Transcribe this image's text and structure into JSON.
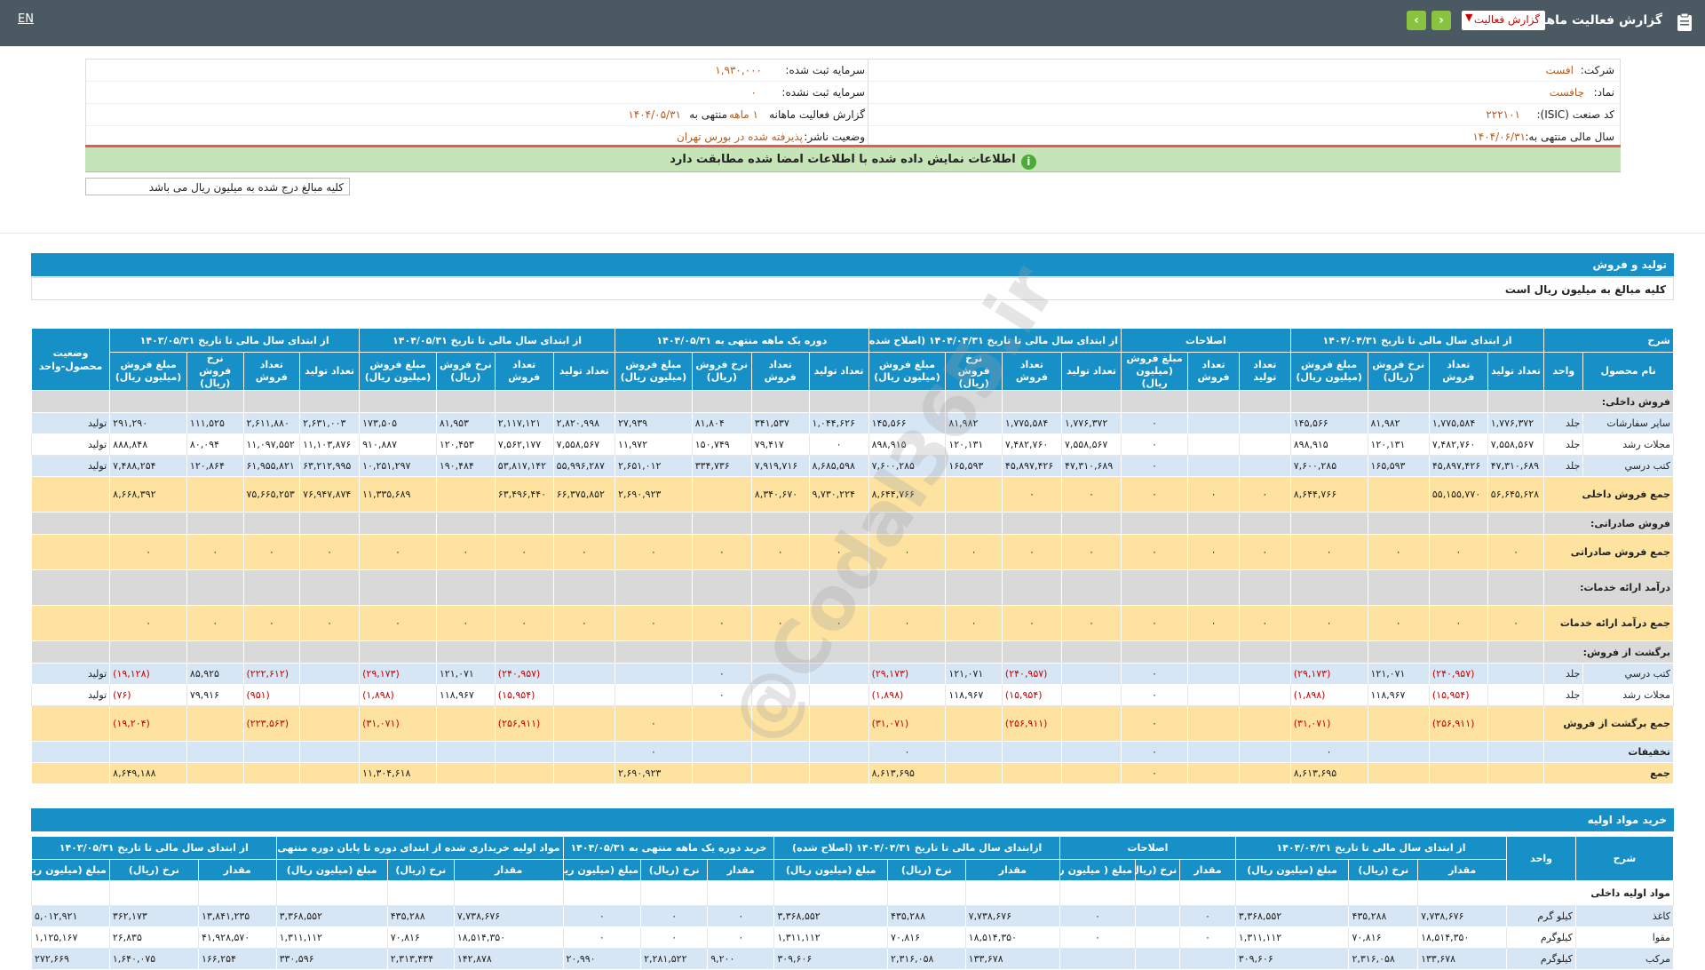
{
  "header": {
    "lang_toggle": "EN",
    "title": "گزارش فعالیت ماهانه",
    "select_value": "گزارش فعالیت",
    "prev_arrow": "‹",
    "next_arrow": "›"
  },
  "company": {
    "company_label": "شرکت:",
    "company_value": "افست",
    "symbol_label": "نماد:",
    "symbol_value": "چافست",
    "isic_label": "کد صنعت (ISIC):",
    "isic_value": "۲۲۲۱۰۱",
    "fiscal_label": "سال مالی منتهی به:",
    "fiscal_value": "۱۴۰۴/۰۶/۳۱",
    "capital_label": "سرمایه ثبت شده:",
    "capital_value": "۱,۹۳۰,۰۰۰",
    "unreg_capital_label": "سرمایه ثبت نشده:",
    "unreg_capital_value": "۰",
    "report_label": "گزارش فعالیت ماهانه",
    "report_value": "۱ ماهه",
    "report_end": "منتهی به",
    "report_date": "۱۴۰۴/۰۵/۳۱",
    "status_label": "وضعیت ناشر:",
    "status_value": "پذیرفته شده در بورس تهران"
  },
  "notice": {
    "info_icon": "i",
    "text": "اطلاعات نمایش داده شده با اطلاعات امضا شده مطابقت دارد",
    "amount_note": "کلیه مبالغ درج شده به میلیون ریال می باشد"
  },
  "production": {
    "title": "تولید و فروش",
    "subtitle": "کلیه مبالغ به میلیون ریال است",
    "group_headers": [
      "شرح",
      "از ابتدای سال مالی تا تاریخ ۱۴۰۴/۰۴/۳۱",
      "اصلاحات",
      "از ابتدای سال مالی تا تاریخ ۱۴۰۴/۰۴/۳۱ (اصلاح شده)",
      "دوره یک ماهه منتهی به ۱۴۰۴/۰۵/۳۱",
      "از ابتدای سال مالی تا تاریخ ۱۴۰۴/۰۵/۳۱",
      "از ابتدای سال مالی تا تاریخ ۱۴۰۳/۰۵/۳۱",
      "وضعیت محصول-واحد"
    ],
    "sub_headers": [
      "نام محصول",
      "واحد",
      "تعداد تولید",
      "تعداد فروش",
      "نرخ فروش (ریال)",
      "مبلغ فروش (میلیون ریال)",
      "تعداد تولید",
      "تعداد فروش",
      "مبلغ فروش (میلیون ریال)",
      "تعداد تولید",
      "تعداد فروش",
      "نرخ فروش (ریال)",
      "مبلغ فروش (میلیون ریال)",
      "تعداد تولید",
      "تعداد فروش",
      "نرخ فروش (ریال)",
      "مبلغ فروش (میلیون ریال)",
      "تعداد تولید",
      "تعداد فروش",
      "نرخ فروش (ریال)",
      "مبلغ فروش (میلیون ریال)",
      "تعداد تولید",
      "تعداد فروش",
      "نرخ فروش (ریال)",
      "مبلغ فروش (میلیون ریال)"
    ],
    "rows": [
      {
        "type": "section",
        "label": "فروش داخلی:"
      },
      {
        "type": "data",
        "style": "blue",
        "name": "سایر سفارشات",
        "unit": "جلد",
        "cells": [
          "۱,۷۷۶,۳۷۲",
          "۱,۷۷۵,۵۸۴",
          "۸۱,۹۸۲",
          "۱۴۵,۵۶۶",
          "",
          "",
          "۰",
          "۱,۷۷۶,۳۷۲",
          "۱,۷۷۵,۵۸۴",
          "۸۱,۹۸۲",
          "۱۴۵,۵۶۶",
          "۱,۰۴۴,۶۲۶",
          "۳۴۱,۵۳۷",
          "۸۱,۸۰۴",
          "۲۷,۹۳۹",
          "۲,۸۲۰,۹۹۸",
          "۲,۱۱۷,۱۲۱",
          "۸۱,۹۵۳",
          "۱۷۳,۵۰۵",
          "۲,۶۳۱,۰۰۳",
          "۲,۶۱۱,۸۸۰",
          "۱۱۱,۵۲۵",
          "۲۹۱,۲۹۰"
        ],
        "status": "تولید"
      },
      {
        "type": "data",
        "style": "white",
        "name": "مجلات رشد",
        "unit": "جلد",
        "cells": [
          "۷,۵۵۸,۵۶۷",
          "۷,۴۸۲,۷۶۰",
          "۱۲۰,۱۳۱",
          "۸۹۸,۹۱۵",
          "",
          "",
          "۰",
          "۷,۵۵۸,۵۶۷",
          "۷,۴۸۲,۷۶۰",
          "۱۲۰,۱۳۱",
          "۸۹۸,۹۱۵",
          "۰",
          "۷۹,۴۱۷",
          "۱۵۰,۷۴۹",
          "۱۱,۹۷۲",
          "۷,۵۵۸,۵۶۷",
          "۷,۵۶۲,۱۷۷",
          "۱۲۰,۴۵۳",
          "۹۱۰,۸۸۷",
          "۱۱,۱۰۳,۸۷۶",
          "۱۱,۰۹۷,۵۵۲",
          "۸۰,۰۹۴",
          "۸۸۸,۸۴۸"
        ],
        "status": "تولید"
      },
      {
        "type": "data",
        "style": "blue",
        "name": "کتب درسي",
        "unit": "جلد",
        "cells": [
          "۴۷,۳۱۰,۶۸۹",
          "۴۵,۸۹۷,۴۲۶",
          "۱۶۵,۵۹۳",
          "۷,۶۰۰,۲۸۵",
          "",
          "",
          "۰",
          "۴۷,۳۱۰,۶۸۹",
          "۴۵,۸۹۷,۴۲۶",
          "۱۶۵,۵۹۳",
          "۷,۶۰۰,۲۸۵",
          "۸,۶۸۵,۵۹۸",
          "۷,۹۱۹,۷۱۶",
          "۳۳۴,۷۳۶",
          "۲,۶۵۱,۰۱۲",
          "۵۵,۹۹۶,۲۸۷",
          "۵۳,۸۱۷,۱۴۲",
          "۱۹۰,۴۸۴",
          "۱۰,۲۵۱,۲۹۷",
          "۶۳,۲۱۲,۹۹۵",
          "۶۱,۹۵۵,۸۲۱",
          "۱۲۰,۸۶۴",
          "۷,۴۸۸,۲۵۴"
        ],
        "status": "تولید"
      },
      {
        "type": "data",
        "style": "gold",
        "name": "جمع فروش داخلی",
        "unit": "",
        "cells": [
          "۵۶,۶۴۵,۶۲۸",
          "۵۵,۱۵۵,۷۷۰",
          "",
          "۸,۶۴۴,۷۶۶",
          "۰",
          "۰",
          "۰",
          "۰",
          "۰",
          "",
          "۸,۶۴۴,۷۶۶",
          "۹,۷۳۰,۲۲۴",
          "۸,۳۴۰,۶۷۰",
          "",
          "۲,۶۹۰,۹۲۳",
          "۶۶,۳۷۵,۸۵۲",
          "۶۳,۴۹۶,۴۴۰",
          "",
          "۱۱,۳۳۵,۶۸۹",
          "۷۶,۹۴۷,۸۷۴",
          "۷۵,۶۶۵,۲۵۳",
          "",
          "۸,۶۶۸,۳۹۲"
        ],
        "status": ""
      },
      {
        "type": "section",
        "label": "فروش صادراتی:"
      },
      {
        "type": "zero",
        "style": "gold",
        "name": "جمع فروش صادراتی"
      },
      {
        "type": "section",
        "label": "درآمد ارائه خدمات:"
      },
      {
        "type": "zero",
        "style": "gold",
        "name": "جمع درآمد ارائه خدمات"
      },
      {
        "type": "section",
        "label": "برگشت از فروش:"
      },
      {
        "type": "data",
        "style": "blue",
        "name": "کتب درسي",
        "unit": "جلد",
        "cells": [
          "",
          "(۲۴۰,۹۵۷)",
          "۱۲۱,۰۷۱",
          "(۲۹,۱۷۳)",
          "",
          "",
          "۰",
          "",
          "(۲۴۰,۹۵۷)",
          "۱۲۱,۰۷۱",
          "(۲۹,۱۷۳)",
          "",
          "",
          "۰",
          "",
          "",
          "(۲۴۰,۹۵۷)",
          "۱۲۱,۰۷۱",
          "(۲۹,۱۷۳)",
          "",
          "(۲۲۲,۶۱۲)",
          "۸۵,۹۲۵",
          "(۱۹,۱۲۸)"
        ],
        "status": "تولید"
      },
      {
        "type": "data",
        "style": "white",
        "name": "مجلات رشد",
        "unit": "جلد",
        "cells": [
          "",
          "(۱۵,۹۵۴)",
          "۱۱۸,۹۶۷",
          "(۱,۸۹۸)",
          "",
          "",
          "۰",
          "",
          "(۱۵,۹۵۴)",
          "۱۱۸,۹۶۷",
          "(۱,۸۹۸)",
          "",
          "",
          "۰",
          "",
          "",
          "(۱۵,۹۵۴)",
          "۱۱۸,۹۶۷",
          "(۱,۸۹۸)",
          "",
          "(۹۵۱)",
          "۷۹,۹۱۶",
          "(۷۶)"
        ],
        "status": "تولید"
      },
      {
        "type": "data",
        "style": "gold",
        "name": "جمع برگشت از فروش",
        "unit": "",
        "cells": [
          "",
          "(۲۵۶,۹۱۱)",
          "",
          "(۳۱,۰۷۱)",
          "",
          "",
          "۰",
          "",
          "(۲۵۶,۹۱۱)",
          "",
          "(۳۱,۰۷۱)",
          "",
          "",
          "",
          "۰",
          "",
          "(۲۵۶,۹۱۱)",
          "",
          "(۳۱,۰۷۱)",
          "",
          "(۲۲۳,۵۶۳)",
          "",
          "(۱۹,۲۰۴)"
        ],
        "status": ""
      },
      {
        "type": "data",
        "style": "blue",
        "name": "تخفیفات",
        "unit": "",
        "cells": [
          "",
          "",
          "",
          "۰",
          "",
          "",
          "۰",
          "",
          "",
          "",
          "۰",
          "",
          "",
          "",
          "۰",
          "",
          "",
          "",
          "",
          "",
          "",
          "",
          ""
        ],
        "status": ""
      },
      {
        "type": "data",
        "style": "gold",
        "name": "جمع",
        "unit": "",
        "cells": [
          "",
          "",
          "",
          "۸,۶۱۳,۶۹۵",
          "",
          "",
          "۰",
          "",
          "",
          "",
          "۸,۶۱۳,۶۹۵",
          "",
          "",
          "",
          "۲,۶۹۰,۹۲۳",
          "",
          "",
          "",
          "۱۱,۳۰۴,۶۱۸",
          "",
          "",
          "",
          "۸,۶۴۹,۱۸۸"
        ],
        "status": ""
      }
    ]
  },
  "materials": {
    "title": "خرید مواد اولیه",
    "group_headers": [
      "شرح",
      "واحد",
      "از ابتدای سال مالی تا تاریخ ۱۴۰۴/۰۴/۳۱",
      "اصلاحات",
      "ازابتدای سال مالی تا تاریخ ۱۴۰۴/۰۴/۳۱ (اصلاح شده)",
      "خرید دوره یک ماهه منتهی به ۱۴۰۴/۰۵/۳۱",
      "مواد اولیه خریداری شده از ابتدای دوره تا پایان دوره منتهی به ۱۴۰۴/۰۵/۳۱",
      "از ابتدای سال مالی تا تاریخ ۱۴۰۳/۰۵/۳۱"
    ],
    "sub_headers": [
      "مقدار",
      "نرخ (ریال)",
      "مبلغ (میلیون ریال)",
      "مقدار",
      "نرخ (ریال)",
      "مبلغ ( میلیون ریال)",
      "مقدار",
      "نرخ (ریال)",
      "مبلغ (میلیون ریال)",
      "مقدار",
      "نرخ (ریال)",
      "مبلغ (میلیون ریال)",
      "مقدار",
      "نرخ (ریال)",
      "مبلغ (میلیون ریال)",
      "مقدار",
      "نرخ (ریال)",
      "مبلغ (میلیون ریال)"
    ],
    "section_label": "مواد اولیه داخلی",
    "rows": [
      {
        "style": "blue",
        "name": "کاغذ",
        "unit": "کیلو گرم",
        "cells": [
          "۷,۷۳۸,۶۷۶",
          "۴۳۵,۲۸۸",
          "۳,۳۶۸,۵۵۲",
          "۰",
          "",
          "۰",
          "۷,۷۳۸,۶۷۶",
          "۴۳۵,۲۸۸",
          "۳,۳۶۸,۵۵۲",
          "۰",
          "۰",
          "۰",
          "۷,۷۳۸,۶۷۶",
          "۴۳۵,۲۸۸",
          "۳,۳۶۸,۵۵۲",
          "۱۳,۸۴۱,۲۳۵",
          "۳۶۲,۱۷۳",
          "۵,۰۱۲,۹۲۱"
        ]
      },
      {
        "style": "white",
        "name": "مقوا",
        "unit": "کیلوگرم",
        "cells": [
          "۱۸,۵۱۴,۳۵۰",
          "۷۰,۸۱۶",
          "۱,۳۱۱,۱۱۲",
          "۰",
          "",
          "۰",
          "۱۸,۵۱۴,۳۵۰",
          "۷۰,۸۱۶",
          "۱,۳۱۱,۱۱۲",
          "۰",
          "۰",
          "۰",
          "۱۸,۵۱۴,۳۵۰",
          "۷۰,۸۱۶",
          "۱,۳۱۱,۱۱۲",
          "۴۱,۹۲۸,۵۷۰",
          "۲۶,۸۳۵",
          "۱,۱۲۵,۱۶۷"
        ]
      },
      {
        "style": "blue",
        "name": "مرکب",
        "unit": "کیلوگرم",
        "cells": [
          "۱۳۳,۶۷۸",
          "۲,۳۱۶,۰۵۸",
          "۳۰۹,۶۰۶",
          "",
          "",
          "",
          "۱۳۳,۶۷۸",
          "۲,۳۱۶,۰۵۸",
          "۳۰۹,۶۰۶",
          "۹,۲۰۰",
          "۲,۲۸۱,۵۲۲",
          "۲۰,۹۹۰",
          "۱۴۲,۸۷۸",
          "۲,۳۱۳,۴۳۴",
          "۳۳۰,۵۹۶",
          "۱۶۶,۲۵۴",
          "۱,۶۴۰,۰۷۵",
          "۲۷۲,۶۶۹"
        ]
      }
    ]
  }
}
